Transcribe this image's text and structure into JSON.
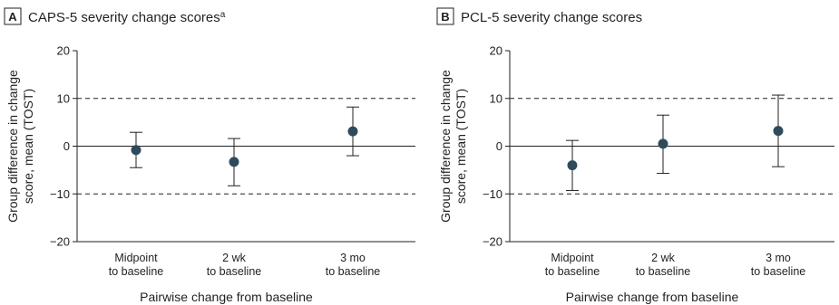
{
  "chart_data": [
    {
      "type": "scatter",
      "panel_letter": "A",
      "title": "CAPS-5 severity change scores",
      "title_superscript": "a",
      "categories": [
        [
          "Midpoint",
          "to baseline"
        ],
        [
          "2 wk",
          "to baseline"
        ],
        [
          "3 mo",
          "to baseline"
        ]
      ],
      "series": [
        {
          "values": [
            -0.8,
            -3.3,
            3.1
          ],
          "ci_lower": [
            -4.5,
            -8.3,
            -2.0
          ],
          "ci_upper": [
            2.9,
            1.6,
            8.2
          ]
        }
      ],
      "xlabel": "Pairwise change from baseline",
      "ylabel": [
        "Group difference in change",
        "score, mean (TOST)"
      ],
      "ylim": [
        -20,
        20
      ],
      "yticks": [
        20,
        10,
        0,
        -10,
        -20
      ],
      "ytick_labels": [
        "20",
        "10",
        "0",
        "−10",
        "−20"
      ],
      "reference_lines": {
        "dashed": [
          10,
          -10
        ],
        "solid": [
          0
        ]
      },
      "grid": false,
      "marker_color": "#2e4b5c"
    },
    {
      "type": "scatter",
      "panel_letter": "B",
      "title": "PCL-5 severity change scores",
      "categories": [
        [
          "Midpoint",
          "to baseline"
        ],
        [
          "2 wk",
          "to baseline"
        ],
        [
          "3 mo",
          "to baseline"
        ]
      ],
      "series": [
        {
          "values": [
            -4.0,
            0.5,
            3.2
          ],
          "ci_lower": [
            -9.3,
            -5.7,
            -4.3
          ],
          "ci_upper": [
            1.2,
            6.5,
            10.7
          ]
        }
      ],
      "xlabel": "Pairwise change from baseline",
      "ylabel": [
        "Group difference in change",
        "score, mean (TOST)"
      ],
      "ylim": [
        -20,
        20
      ],
      "yticks": [
        20,
        10,
        0,
        -10,
        -20
      ],
      "ytick_labels": [
        "20",
        "10",
        "0",
        "−10",
        "−20"
      ],
      "reference_lines": {
        "dashed": [
          10,
          -10
        ],
        "solid": [
          0
        ]
      },
      "grid": false,
      "marker_color": "#2e4b5c"
    }
  ]
}
